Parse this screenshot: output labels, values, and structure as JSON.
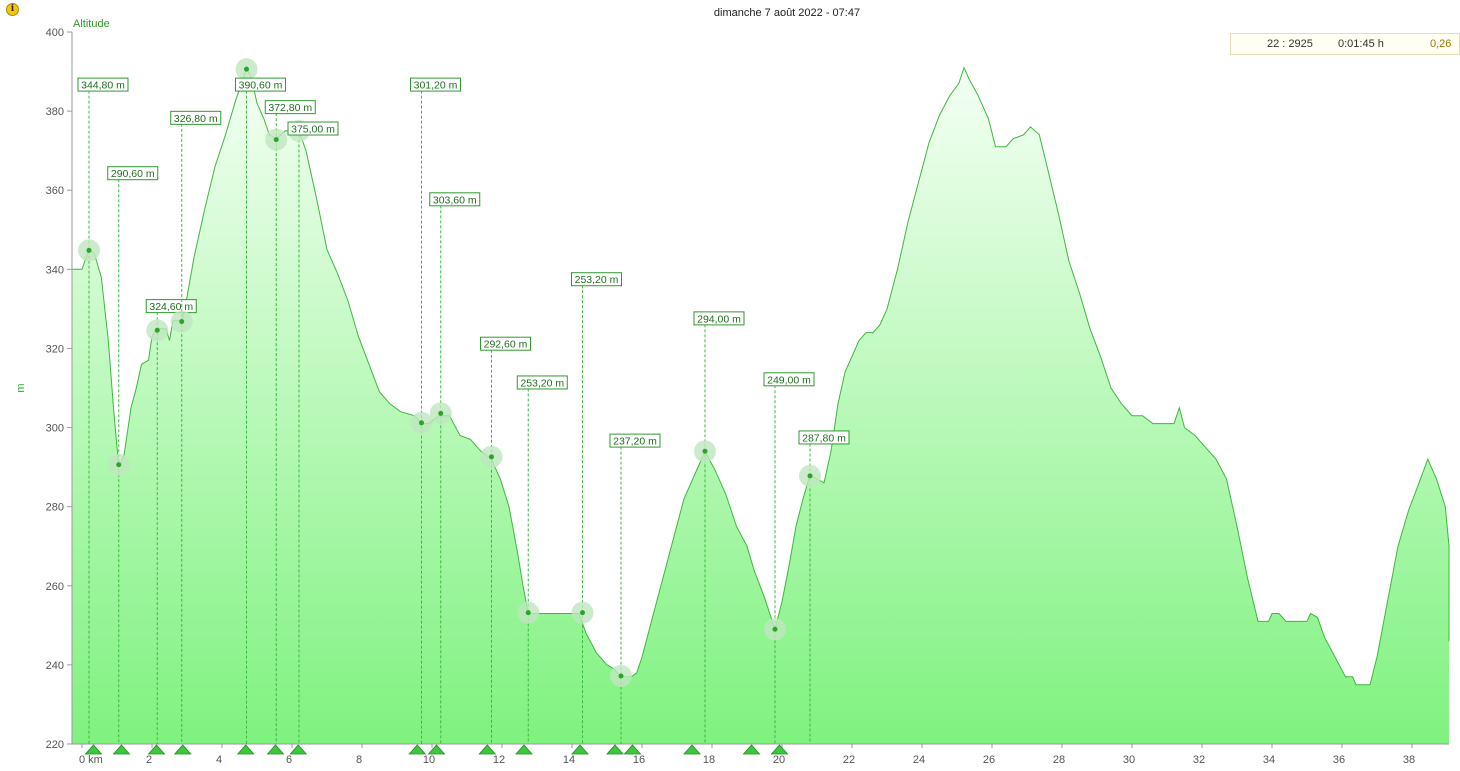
{
  "header": {
    "title": "dimanche 7 août 2022 - 07:47",
    "info_icon": "info-icon"
  },
  "info_box": {
    "index": "22 : 2925",
    "duration": "0:01:45 h",
    "extra": "0,26"
  },
  "chart_data": {
    "type": "area",
    "series_name": "Altitude",
    "ylabel": "m",
    "xlim": [
      0,
      39.3
    ],
    "ylim": [
      220,
      400
    ],
    "y_ticks": [
      220,
      240,
      260,
      280,
      300,
      320,
      340,
      360,
      380,
      400
    ],
    "x_ticks": [
      "0 km",
      "2",
      "4",
      "6",
      "8",
      "10",
      "12",
      "14",
      "16",
      "18",
      "20",
      "22",
      "24",
      "26",
      "28",
      "30",
      "32",
      "34",
      "36",
      "38"
    ],
    "x_tick_values": [
      0,
      2,
      4,
      6,
      8,
      10,
      12,
      14,
      16,
      18,
      20,
      22,
      24,
      26,
      28,
      30,
      32,
      34,
      36,
      38
    ],
    "grid": false,
    "colors": {
      "line": "#3cb83c",
      "fill_top": "#f4fff4",
      "fill_bottom": "#7ff27f",
      "marker": "#2aa52a",
      "halo": "#bfe6bf"
    },
    "profile": [
      [
        0.0,
        340
      ],
      [
        0.2,
        345
      ],
      [
        0.35,
        344
      ],
      [
        0.55,
        338
      ],
      [
        0.75,
        322
      ],
      [
        0.9,
        305
      ],
      [
        1.05,
        290
      ],
      [
        1.2,
        293
      ],
      [
        1.4,
        305
      ],
      [
        1.55,
        310
      ],
      [
        1.7,
        316
      ],
      [
        1.9,
        317
      ],
      [
        2.0,
        323
      ],
      [
        2.15,
        325
      ],
      [
        2.4,
        325
      ],
      [
        2.5,
        322
      ],
      [
        2.6,
        327
      ],
      [
        2.85,
        327
      ],
      [
        3.0,
        333
      ],
      [
        3.2,
        343
      ],
      [
        3.5,
        355
      ],
      [
        3.8,
        366
      ],
      [
        4.1,
        374
      ],
      [
        4.4,
        383
      ],
      [
        4.6,
        388
      ],
      [
        4.7,
        391
      ],
      [
        4.85,
        388
      ],
      [
        5.0,
        382
      ],
      [
        5.2,
        378
      ],
      [
        5.35,
        374
      ],
      [
        5.55,
        373
      ],
      [
        5.8,
        375
      ],
      [
        6.2,
        375
      ],
      [
        6.4,
        370
      ],
      [
        6.7,
        358
      ],
      [
        7.0,
        345
      ],
      [
        7.3,
        339
      ],
      [
        7.6,
        332
      ],
      [
        7.9,
        323
      ],
      [
        8.2,
        316
      ],
      [
        8.5,
        309
      ],
      [
        8.8,
        306
      ],
      [
        9.1,
        304
      ],
      [
        9.5,
        303
      ],
      [
        9.7,
        301
      ],
      [
        9.9,
        301
      ],
      [
        10.2,
        303
      ],
      [
        10.5,
        303
      ],
      [
        10.8,
        298
      ],
      [
        11.1,
        297
      ],
      [
        11.4,
        294
      ],
      [
        11.7,
        292
      ],
      [
        11.95,
        287
      ],
      [
        12.2,
        280
      ],
      [
        12.45,
        268
      ],
      [
        12.6,
        260
      ],
      [
        12.75,
        253
      ],
      [
        13.2,
        253
      ],
      [
        13.7,
        253
      ],
      [
        14.2,
        253
      ],
      [
        14.4,
        248
      ],
      [
        14.7,
        243
      ],
      [
        15.0,
        240
      ],
      [
        15.2,
        239
      ],
      [
        15.4,
        237
      ],
      [
        15.7,
        237
      ],
      [
        15.85,
        238
      ],
      [
        16.0,
        242
      ],
      [
        16.3,
        252
      ],
      [
        16.6,
        262
      ],
      [
        16.9,
        272
      ],
      [
        17.2,
        282
      ],
      [
        17.5,
        288
      ],
      [
        17.8,
        294
      ],
      [
        18.1,
        289
      ],
      [
        18.4,
        283
      ],
      [
        18.7,
        275
      ],
      [
        19.0,
        270
      ],
      [
        19.2,
        264
      ],
      [
        19.5,
        257
      ],
      [
        19.8,
        249
      ],
      [
        20.0,
        256
      ],
      [
        20.2,
        265
      ],
      [
        20.4,
        275
      ],
      [
        20.6,
        282
      ],
      [
        20.8,
        288
      ],
      [
        21.0,
        287
      ],
      [
        21.2,
        286
      ],
      [
        21.4,
        294
      ],
      [
        21.6,
        306
      ],
      [
        21.8,
        314
      ],
      [
        22.0,
        318
      ],
      [
        22.2,
        322
      ],
      [
        22.4,
        324
      ],
      [
        22.6,
        324
      ],
      [
        22.8,
        326
      ],
      [
        23.0,
        330
      ],
      [
        23.3,
        340
      ],
      [
        23.6,
        352
      ],
      [
        23.9,
        362
      ],
      [
        24.2,
        372
      ],
      [
        24.5,
        379
      ],
      [
        24.8,
        384
      ],
      [
        25.05,
        387
      ],
      [
        25.2,
        391
      ],
      [
        25.35,
        388
      ],
      [
        25.6,
        384
      ],
      [
        25.9,
        378
      ],
      [
        26.1,
        371
      ],
      [
        26.4,
        371
      ],
      [
        26.6,
        373
      ],
      [
        26.9,
        374
      ],
      [
        27.1,
        376
      ],
      [
        27.35,
        374
      ],
      [
        27.6,
        365
      ],
      [
        27.9,
        354
      ],
      [
        28.2,
        342
      ],
      [
        28.5,
        334
      ],
      [
        28.8,
        325
      ],
      [
        29.1,
        318
      ],
      [
        29.4,
        310
      ],
      [
        29.7,
        306
      ],
      [
        30.0,
        303
      ],
      [
        30.3,
        303
      ],
      [
        30.6,
        301
      ],
      [
        30.9,
        301
      ],
      [
        31.2,
        301
      ],
      [
        31.35,
        305
      ],
      [
        31.5,
        300
      ],
      [
        31.8,
        298
      ],
      [
        32.1,
        295
      ],
      [
        32.4,
        292
      ],
      [
        32.7,
        287
      ],
      [
        33.0,
        275
      ],
      [
        33.3,
        262
      ],
      [
        33.6,
        251
      ],
      [
        33.9,
        251
      ],
      [
        34.0,
        253
      ],
      [
        34.2,
        253
      ],
      [
        34.4,
        251
      ],
      [
        34.8,
        251
      ],
      [
        35.0,
        251
      ],
      [
        35.1,
        253
      ],
      [
        35.3,
        252
      ],
      [
        35.5,
        247
      ],
      [
        35.8,
        242
      ],
      [
        36.1,
        237
      ],
      [
        36.3,
        237
      ],
      [
        36.4,
        235
      ],
      [
        36.8,
        235
      ],
      [
        37.0,
        242
      ],
      [
        37.3,
        256
      ],
      [
        37.6,
        270
      ],
      [
        37.9,
        279
      ],
      [
        38.2,
        286
      ],
      [
        38.45,
        292
      ],
      [
        38.7,
        287
      ],
      [
        38.95,
        280
      ],
      [
        39.1,
        270
      ],
      [
        39.2,
        262
      ],
      [
        39.25,
        250
      ],
      [
        39.3,
        246
      ],
      [
        39.35,
        250
      ],
      [
        39.45,
        256
      ],
      [
        39.6,
        258
      ]
    ],
    "markers": [
      {
        "x": 0.2,
        "y": 344.8,
        "label": "344,80 m",
        "label_y": 386.7
      },
      {
        "x": 1.05,
        "y": 290.6,
        "label": "290,60 m",
        "label_y": 364.3
      },
      {
        "x": 2.15,
        "y": 324.6,
        "label": "324,60 m",
        "label_y": 330.7
      },
      {
        "x": 2.85,
        "y": 326.8,
        "label": "326,80 m",
        "label_y": 378.3
      },
      {
        "x": 4.7,
        "y": 390.6,
        "label": "390,60 m",
        "label_y": 386.7
      },
      {
        "x": 5.55,
        "y": 372.8,
        "label": "372,80 m",
        "label_y": 381.0
      },
      {
        "x": 6.2,
        "y": 375.0,
        "label": "375,00 m",
        "label_y": 375.6
      },
      {
        "x": 9.7,
        "y": 301.2,
        "label": "301,20 m",
        "label_y": 386.7
      },
      {
        "x": 10.25,
        "y": 303.6,
        "label": "303,60 m",
        "label_y": 357.7
      },
      {
        "x": 11.7,
        "y": 292.6,
        "label": "292,60 m",
        "label_y": 321.2
      },
      {
        "x": 12.75,
        "y": 253.2,
        "label": "253,20 m",
        "label_y": 311.4
      },
      {
        "x": 14.3,
        "y": 253.2,
        "label": "253,20 m",
        "label_y": 337.5
      },
      {
        "x": 15.4,
        "y": 237.2,
        "label": "237,20 m",
        "label_y": 296.7
      },
      {
        "x": 17.8,
        "y": 294.0,
        "label": "294,00 m",
        "label_y": 327.6
      },
      {
        "x": 19.8,
        "y": 249.0,
        "label": "249,00 m",
        "label_y": 312.2
      },
      {
        "x": 20.8,
        "y": 287.8,
        "label": "287,80 m",
        "label_y": 297.5
      }
    ],
    "x_markers": [
      0.3,
      1.1,
      2.1,
      2.85,
      4.65,
      5.5,
      6.15,
      9.55,
      10.1,
      11.55,
      12.6,
      14.2,
      15.2,
      15.7,
      17.4,
      19.1,
      19.9
    ]
  }
}
